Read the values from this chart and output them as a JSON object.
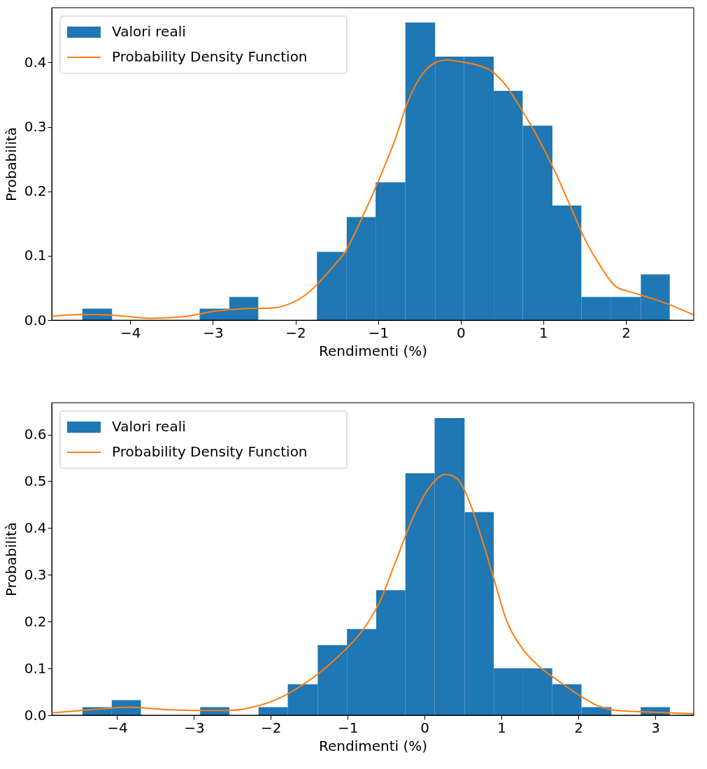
{
  "chart_data": [
    {
      "type": "histogram",
      "xlabel": "Rendimenti (%)",
      "ylabel": "Probabilità",
      "xlim": [
        -4.95,
        2.82
      ],
      "ylim": [
        0,
        0.485
      ],
      "xticks": [
        -4,
        -3,
        -2,
        -1,
        0,
        1,
        2
      ],
      "yticks": [
        {
          "value": 0,
          "label": "0.0"
        },
        0.1,
        0.2,
        0.3,
        0.4
      ],
      "grid": false,
      "legend": "top left",
      "series": [
        {
          "name": "Valori reali",
          "color": "#1f77b4",
          "bins": [
            -4.58,
            -4.22,
            -3.16,
            -2.8,
            -2.45,
            -1.74,
            -1.38,
            -1.03,
            -0.67,
            -0.31,
            0.04,
            0.4,
            0.75,
            1.11,
            1.46,
            1.82,
            2.18,
            2.53
          ],
          "values": [
            0.018,
            0,
            0.018,
            0.036,
            0,
            0.106,
            0.16,
            0.214,
            0.462,
            0.409,
            0.409,
            0.356,
            0.302,
            0.178,
            0.036,
            0.036,
            0.071
          ]
        },
        {
          "name": "Probability Density Function",
          "type": "line",
          "color": "#ff7f0e",
          "x": [
            -4.95,
            -4.58,
            -4.23,
            -3.76,
            -3.32,
            -2.97,
            -2.62,
            -2.28,
            -2.1,
            -1.88,
            -1.58,
            -1.38,
            -1.19,
            -0.99,
            -0.79,
            -0.64,
            -0.49,
            -0.32,
            -0.17,
            0.0,
            0.2,
            0.37,
            0.55,
            0.74,
            0.94,
            1.14,
            1.34,
            1.49,
            1.69,
            1.88,
            2.08,
            2.33,
            2.53,
            2.82
          ],
          "values": [
            0.006,
            0.009,
            0.008,
            0.003,
            0.006,
            0.014,
            0.018,
            0.019,
            0.024,
            0.039,
            0.078,
            0.11,
            0.16,
            0.218,
            0.282,
            0.339,
            0.377,
            0.399,
            0.404,
            0.401,
            0.396,
            0.387,
            0.364,
            0.326,
            0.282,
            0.231,
            0.173,
            0.129,
            0.084,
            0.052,
            0.043,
            0.033,
            0.024,
            0.008
          ]
        }
      ]
    },
    {
      "type": "histogram",
      "xlabel": "Rendimenti (%)",
      "ylabel": "Probabilità",
      "xlim": [
        -4.85,
        3.5
      ],
      "ylim": [
        0,
        0.668
      ],
      "xticks": [
        -4,
        -3,
        -2,
        -1,
        0,
        1,
        2,
        3
      ],
      "yticks": [
        {
          "value": 0,
          "label": "0.0"
        },
        0.1,
        0.2,
        0.3,
        0.4,
        0.5,
        0.6
      ],
      "grid": false,
      "legend": "top left",
      "series": [
        {
          "name": "Valori reali",
          "color": "#1f77b4",
          "bins": [
            -4.45,
            -4.07,
            -3.69,
            -2.92,
            -2.54,
            -2.16,
            -1.78,
            -1.39,
            -1.01,
            -0.63,
            -0.25,
            0.13,
            0.52,
            0.9,
            1.28,
            1.66,
            2.04,
            2.43,
            2.81,
            3.19
          ],
          "values": [
            0.017,
            0.032,
            0,
            0.017,
            0,
            0.017,
            0.066,
            0.15,
            0.184,
            0.267,
            0.517,
            0.635,
            0.434,
            0.1,
            0.1,
            0.066,
            0.017,
            0,
            0.017
          ]
        },
        {
          "name": "Probability Density Function",
          "type": "line",
          "color": "#ff7f0e",
          "x": [
            -4.85,
            -4.32,
            -3.84,
            -3.36,
            -2.93,
            -2.56,
            -2.19,
            -1.87,
            -1.55,
            -1.12,
            -0.8,
            -0.59,
            -0.38,
            -0.16,
            0.05,
            0.27,
            0.42,
            0.58,
            0.74,
            0.9,
            1.06,
            1.27,
            1.49,
            1.7,
            1.97,
            2.24,
            2.5,
            2.87,
            3.5
          ],
          "values": [
            0.005,
            0.012,
            0.017,
            0.012,
            0.01,
            0.01,
            0.019,
            0.038,
            0.069,
            0.126,
            0.183,
            0.24,
            0.327,
            0.419,
            0.484,
            0.515,
            0.506,
            0.458,
            0.379,
            0.292,
            0.205,
            0.143,
            0.104,
            0.078,
            0.047,
            0.021,
            0.01,
            0.007,
            0.003
          ]
        }
      ]
    }
  ]
}
